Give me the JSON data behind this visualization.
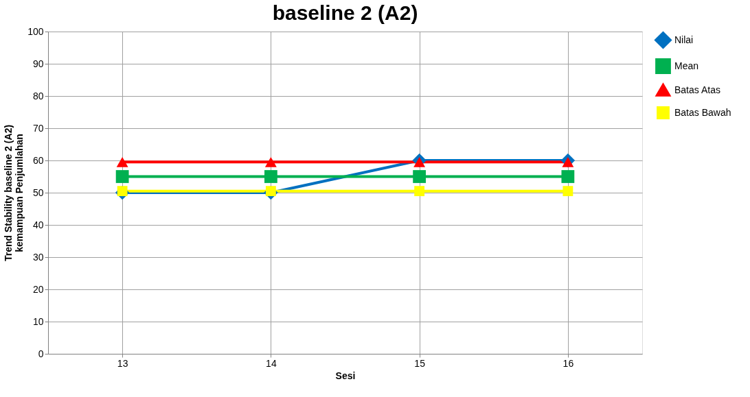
{
  "chart_data": {
    "type": "line",
    "title": "baseline 2 (A2)",
    "xlabel": "Sesi",
    "ylabel": "Trend Stability baseline 2 (A2)\nkemampuan Penjumlahan",
    "categories": [
      "13",
      "14",
      "15",
      "16"
    ],
    "series": [
      {
        "name": "Nilai",
        "color": "#0070c0",
        "marker": "diamond",
        "values": [
          50,
          50,
          60,
          60
        ]
      },
      {
        "name": "Mean",
        "color": "#00b050",
        "marker": "square",
        "values": [
          55,
          55,
          55,
          55
        ]
      },
      {
        "name": "Batas Atas",
        "color": "#ff0000",
        "marker": "triangle",
        "values": [
          59.5,
          59.5,
          59.5,
          59.5
        ]
      },
      {
        "name": "Batas Bawah",
        "color": "#ffff00",
        "marker": "square",
        "values": [
          50.5,
          50.5,
          50.5,
          50.5
        ]
      }
    ],
    "ylim": [
      0,
      100
    ],
    "yticks": [
      0,
      10,
      20,
      30,
      40,
      50,
      60,
      70,
      80,
      90,
      100
    ],
    "grid": true,
    "legend": "right",
    "line_style": "solid"
  }
}
